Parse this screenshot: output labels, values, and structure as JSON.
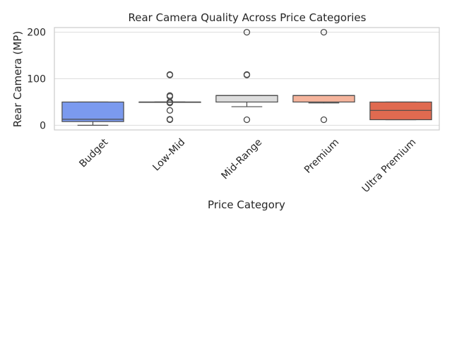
{
  "chart_data": {
    "type": "box",
    "title": "Rear Camera Quality Across Price Categories",
    "xlabel": "Price Category",
    "ylabel": "Rear Camera (MP)",
    "ylim": [
      -10,
      210
    ],
    "yticks": [
      0,
      100,
      200
    ],
    "grid": "horizontal",
    "categories": [
      "Budget",
      "Low-Mid",
      "Mid-Range",
      "Premium",
      "Ultra Premium"
    ],
    "boxes": [
      {
        "category": "Budget",
        "color": "#7b9aef",
        "whisker_low": 0,
        "q1": 8,
        "median": 13,
        "q3": 50,
        "whisker_high": 50,
        "outliers": []
      },
      {
        "category": "Low-Mid",
        "color": "#a9c1f7",
        "whisker_low": 50,
        "q1": 50,
        "median": 50,
        "q3": 50,
        "whisker_high": 50,
        "outliers": [
          108,
          109,
          64,
          62,
          50,
          48,
          32,
          13,
          12
        ]
      },
      {
        "category": "Mid-Range",
        "color": "#dddddd",
        "whisker_low": 40,
        "q1": 50,
        "median": 64,
        "q3": 64,
        "whisker_high": 64,
        "outliers": [
          200,
          108,
          109,
          12
        ]
      },
      {
        "category": "Premium",
        "color": "#f5b49c",
        "whisker_low": 48,
        "q1": 50,
        "median": 64,
        "q3": 64,
        "whisker_high": 64,
        "outliers": [
          200,
          12
        ]
      },
      {
        "category": "Ultra Premium",
        "color": "#e06a50",
        "whisker_low": 12,
        "q1": 12,
        "median": 32,
        "q3": 50,
        "whisker_high": 50,
        "outliers": []
      }
    ]
  }
}
